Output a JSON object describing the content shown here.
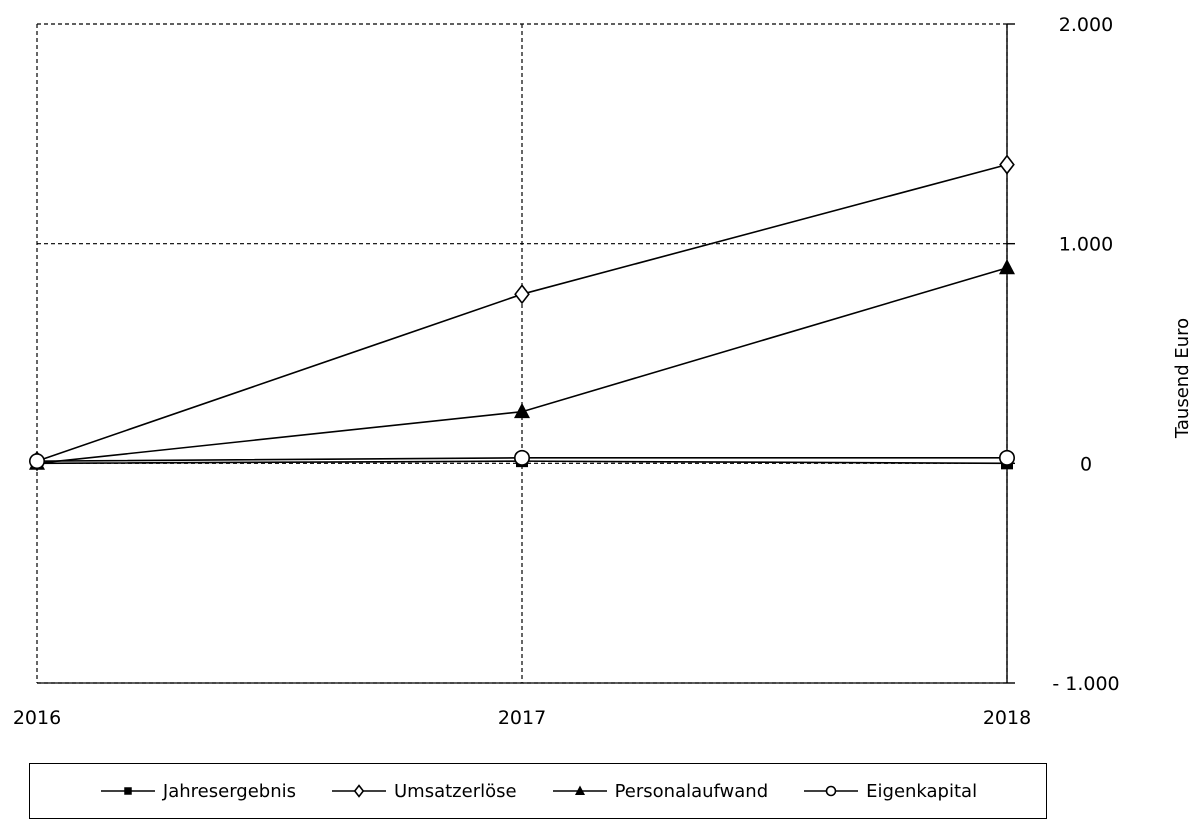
{
  "chart_data": {
    "type": "line",
    "categories": [
      "2016",
      "2017",
      "2018"
    ],
    "x_tick_labels": [
      "2016",
      "2017",
      "2018"
    ],
    "y_tick_labels": [
      "2.000",
      "1.000",
      "0",
      "- 1.000"
    ],
    "y_tick_values": [
      2000,
      1000,
      0,
      -1000
    ],
    "ylim": [
      -1000,
      2000
    ],
    "ylabel": "Tausend Euro",
    "xlabel": "",
    "y_axis_side": "right",
    "grid": true,
    "grid_style": "dashed",
    "legend_position": "bottom",
    "series": [
      {
        "name": "Jahresergebnis",
        "values": [
          0,
          10,
          0
        ],
        "marker": "square-filled",
        "color": "#000000"
      },
      {
        "name": "Umsatzerlöse",
        "values": [
          10,
          770,
          1360
        ],
        "marker": "diamond-open",
        "color": "#000000"
      },
      {
        "name": "Personalaufwand",
        "values": [
          0,
          235,
          890
        ],
        "marker": "triangle-filled",
        "color": "#000000"
      },
      {
        "name": "Eigenkapital",
        "values": [
          10,
          25,
          25
        ],
        "marker": "circle-open",
        "color": "#000000"
      }
    ]
  }
}
